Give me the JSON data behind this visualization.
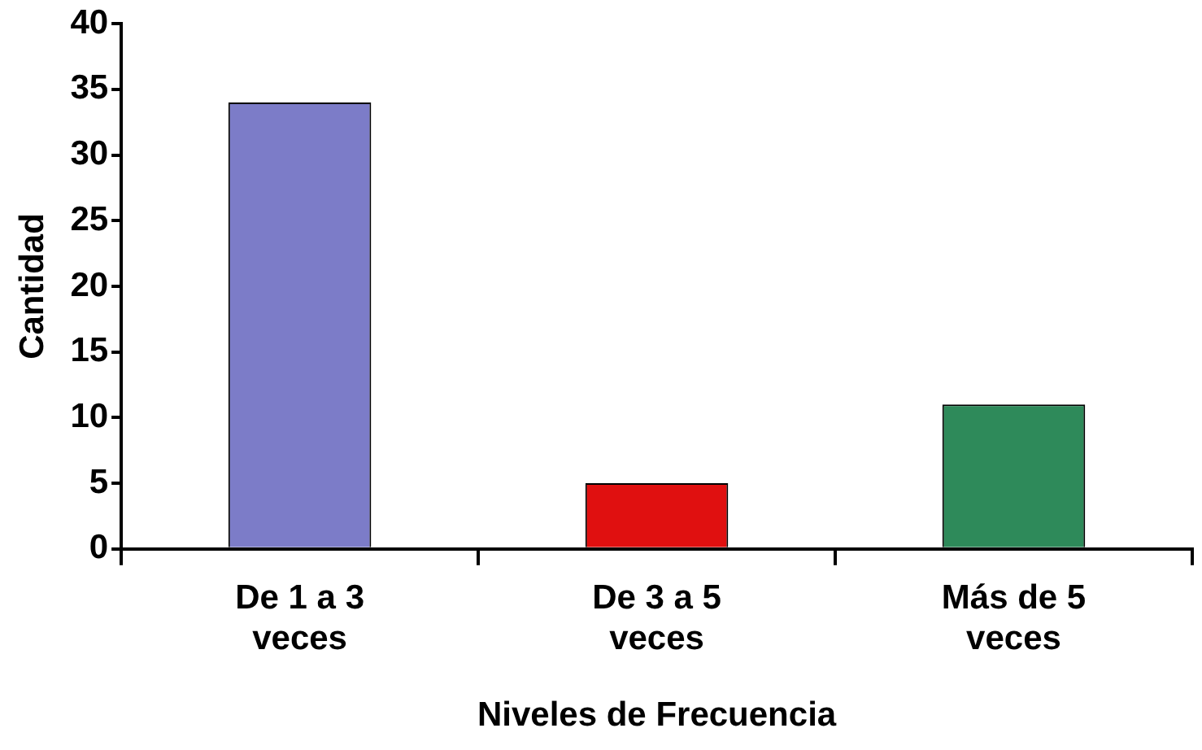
{
  "chart_data": {
    "type": "bar",
    "xlabel": "Niveles de Frecuencia",
    "ylabel": "Cantidad",
    "categories": [
      "De 1 a 3 veces",
      "De 3 a 5 veces",
      "Más de 5 veces"
    ],
    "values": [
      34,
      5,
      11
    ],
    "colors": [
      "#7c7cc8",
      "#e01010",
      "#2e8a5a"
    ],
    "ylim": [
      0,
      40
    ],
    "yticks": [
      0,
      5,
      10,
      15,
      20,
      25,
      30,
      35,
      40
    ],
    "grid": false,
    "legend": false
  }
}
